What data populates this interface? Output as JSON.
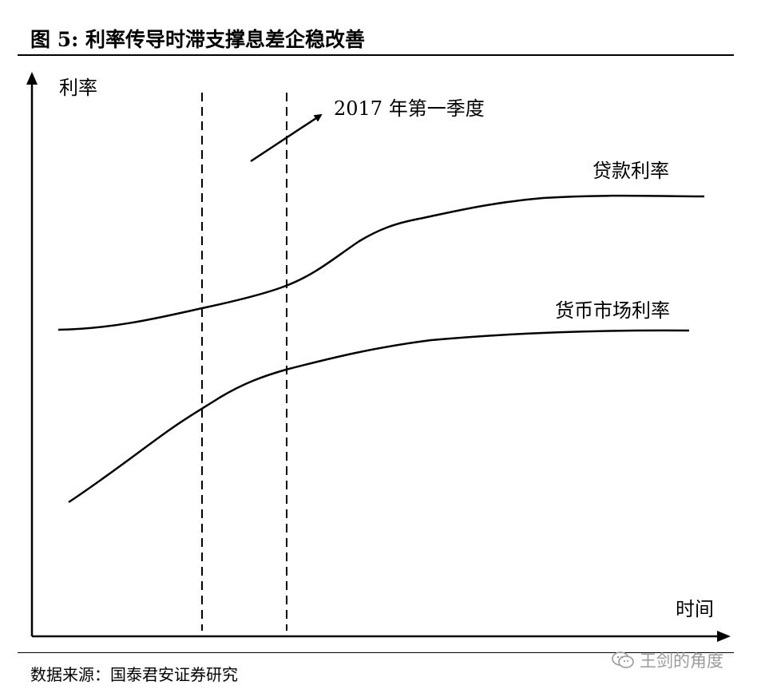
{
  "figure": {
    "title": "图  5:  利率传导时滞支撑息差企稳改善",
    "y_axis_label": "利率",
    "x_axis_label": "时间",
    "annotation": "2017 年第一季度",
    "curves": {
      "loan_rate_label": "贷款利率",
      "money_market_rate_label": "货币市场利率"
    }
  },
  "footer": {
    "source": "数据来源：国泰君安证券研究",
    "watermark": "王剑的角度",
    "watermark_icon": "wechat-icon"
  }
}
